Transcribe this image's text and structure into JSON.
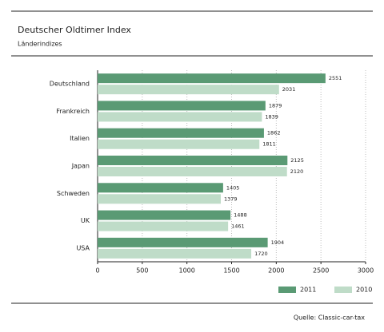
{
  "chart_data": {
    "type": "bar",
    "orientation": "horizontal",
    "title": "Deutscher Oldtimer Index",
    "subtitle": "Länderindizes",
    "categories": [
      "Deutschland",
      "Frankreich",
      "Italien",
      "Japan",
      "Schweden",
      "UK",
      "USA"
    ],
    "series": [
      {
        "name": "2011",
        "color": "#5a9a74",
        "values": [
          2551,
          1879,
          1862,
          2125,
          1405,
          1488,
          1904
        ]
      },
      {
        "name": "2010",
        "color": "#bfdcc8",
        "values": [
          2031,
          1839,
          1811,
          2120,
          1379,
          1461,
          1720
        ]
      }
    ],
    "xlim": [
      0,
      3000
    ],
    "xticks": [
      0,
      500,
      1000,
      1500,
      2000,
      2500,
      3000
    ],
    "grid": true,
    "legend": "bottom-right",
    "source": "Quelle: Classic-car-tax"
  }
}
